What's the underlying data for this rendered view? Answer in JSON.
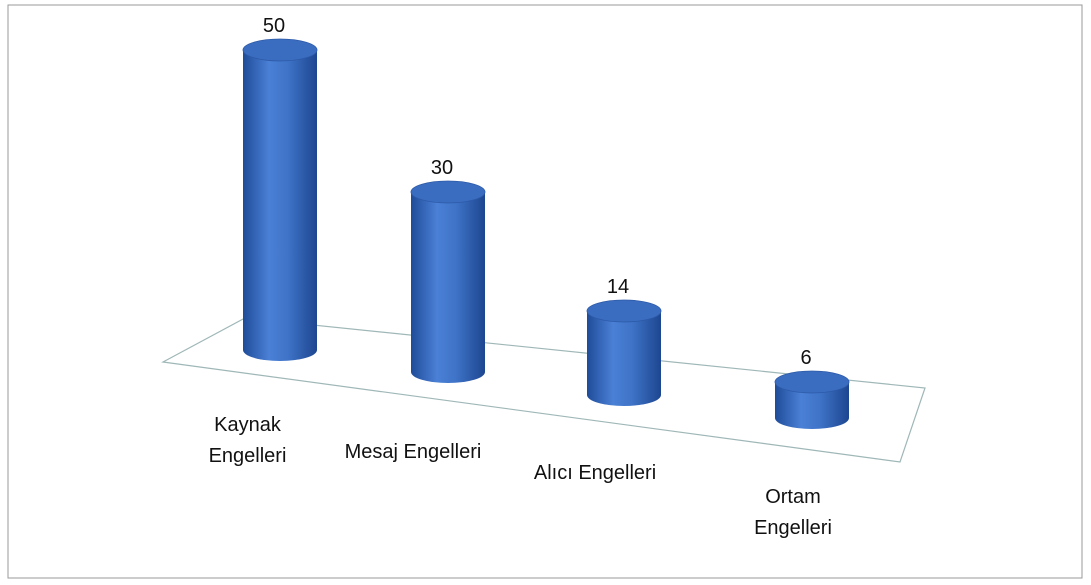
{
  "chart_data": {
    "type": "bar",
    "categories": [
      "Kaynak Engelleri",
      "Mesaj Engelleri",
      "Alıcı Engelleri",
      "Ortam Engelleri"
    ],
    "values": [
      50,
      30,
      14,
      6
    ],
    "color": "#3a6cc0"
  }
}
